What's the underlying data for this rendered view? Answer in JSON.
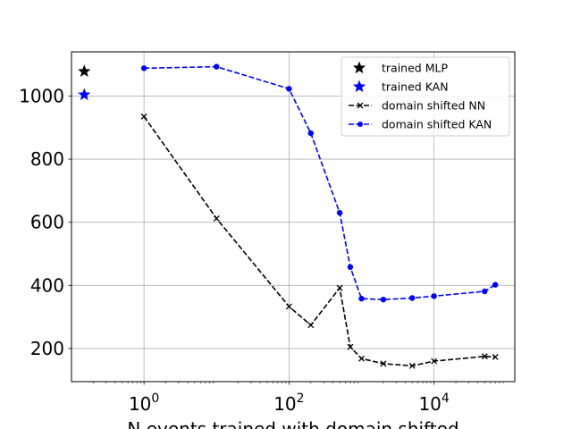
{
  "chart_data": {
    "type": "line",
    "title": "",
    "xlabel": "N events trained with domain shifted",
    "ylabel": "",
    "xscale": "log",
    "xlim": [
      0.1,
      130000
    ],
    "ylim": [
      95,
      1140
    ],
    "grid": true,
    "legend_position": "top-right",
    "x_ticks": [
      {
        "value": 1,
        "base": "10",
        "exp": "0"
      },
      {
        "value": 100,
        "base": "10",
        "exp": "2"
      },
      {
        "value": 10000,
        "base": "10",
        "exp": "4"
      }
    ],
    "y_ticks": [
      200,
      400,
      600,
      800,
      1000
    ],
    "series": [
      {
        "name": "trained MLP",
        "kind": "star",
        "color": "#000000",
        "x": 0.15,
        "y": 1078
      },
      {
        "name": "trained KAN",
        "kind": "star",
        "color": "#0000ff",
        "x": 0.15,
        "y": 1004
      },
      {
        "name": "domain shifted NN",
        "kind": "line",
        "marker": "x",
        "color": "#000000",
        "x": [
          1,
          10,
          100,
          200,
          500,
          700,
          1000,
          2000,
          5000,
          10000,
          50000,
          70000
        ],
        "y": [
          935,
          612,
          333,
          274,
          392,
          205,
          168,
          152,
          145,
          160,
          175,
          173
        ]
      },
      {
        "name": "domain shifted KAN",
        "kind": "line",
        "marker": "o",
        "color": "#0000ff",
        "x": [
          1,
          10,
          100,
          200,
          500,
          700,
          1000,
          2000,
          5000,
          10000,
          50000,
          70000
        ],
        "y": [
          1088,
          1093,
          1023,
          882,
          630,
          458,
          358,
          355,
          360,
          366,
          381,
          402
        ]
      }
    ]
  }
}
